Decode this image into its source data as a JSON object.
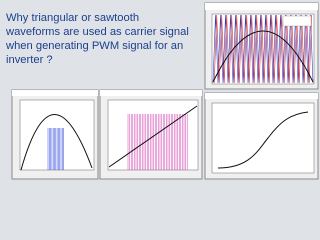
{
  "headline": {
    "lines": [
      "Why triangular or sawtooth",
      "waveforms are used as carrier signal",
      "when generating PWM signal for an",
      "inverter ?"
    ]
  }
}
